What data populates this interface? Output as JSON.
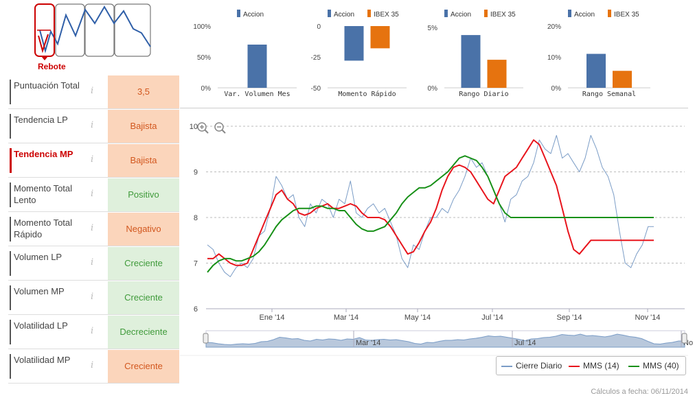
{
  "pattern": {
    "label": "Rebote"
  },
  "indicators": [
    {
      "label": "Puntuación Total",
      "value": "3,5",
      "kind": "neg",
      "active": false
    },
    {
      "label": "Tendencia LP",
      "value": "Bajista",
      "kind": "neg",
      "active": false
    },
    {
      "label": "Tendencia MP",
      "value": "Bajista",
      "kind": "neg",
      "active": true
    },
    {
      "label": "Momento Total Lento",
      "value": "Positivo",
      "kind": "pos",
      "active": false
    },
    {
      "label": "Momento Total Rápido",
      "value": "Negativo",
      "kind": "neg",
      "active": false
    },
    {
      "label": "Volumen LP",
      "value": "Creciente",
      "kind": "pos",
      "active": false
    },
    {
      "label": "Volumen MP",
      "value": "Creciente",
      "kind": "pos",
      "active": false
    },
    {
      "label": "Volatilidad LP",
      "value": "Decreciente",
      "kind": "pos",
      "active": false
    },
    {
      "label": "Volatilidad MP",
      "value": "Creciente",
      "kind": "neg",
      "active": false
    }
  ],
  "info_glyph": "i",
  "colors": {
    "accion": "#4a72a8",
    "ibex": "#e6730f",
    "price": "#7a9cc6",
    "mms14": "#e8141c",
    "mms40": "#179017",
    "neg_bg": "#fbd5bb",
    "pos_bg": "#dff0dc"
  },
  "chart_data": [
    {
      "type": "bar",
      "title": "Var. Volumen Mes",
      "series": [
        {
          "name": "Accion",
          "values": [
            70
          ]
        }
      ],
      "yticks": [
        "100%",
        "50%",
        "0%"
      ],
      "ylim": [
        0,
        100
      ]
    },
    {
      "type": "bar",
      "title": "Momento Rápido",
      "series": [
        {
          "name": "Accion",
          "values": [
            -28
          ]
        },
        {
          "name": "IBEX 35",
          "values": [
            -18
          ]
        }
      ],
      "yticks": [
        "0",
        "-25",
        "-50"
      ],
      "ylim": [
        -50,
        0
      ]
    },
    {
      "type": "bar",
      "title": "Rango Diario",
      "series": [
        {
          "name": "Accion",
          "values": [
            4.7
          ]
        },
        {
          "name": "IBEX 35",
          "values": [
            2.5
          ]
        }
      ],
      "yticks": [
        "5%",
        "0%"
      ],
      "ylim": [
        0,
        5.5
      ]
    },
    {
      "type": "bar",
      "title": "Rango Semanal",
      "series": [
        {
          "name": "Accion",
          "values": [
            11
          ]
        },
        {
          "name": "IBEX 35",
          "values": [
            5.5
          ]
        }
      ],
      "yticks": [
        "20%",
        "10%",
        "0%"
      ],
      "ylim": [
        0,
        20
      ]
    },
    {
      "type": "line",
      "title": "",
      "ylim": [
        6,
        10
      ],
      "yticks": [
        "10",
        "9",
        "8",
        "7",
        "6"
      ],
      "xlabels": [
        "Ene '14",
        "Mar '14",
        "May '14",
        "Jul '14",
        "Sep '14",
        "Nov '14"
      ],
      "navigator_labels": [
        "Mar '14",
        "Jul '14",
        "No"
      ],
      "series": [
        {
          "name": "Cierre Diario",
          "values": [
            7.4,
            7.3,
            7.0,
            6.8,
            6.7,
            6.9,
            7.0,
            6.9,
            7.1,
            7.6,
            7.7,
            8.2,
            8.9,
            8.7,
            8.4,
            8.5,
            8.0,
            7.8,
            8.3,
            8.1,
            8.4,
            8.3,
            8.0,
            8.4,
            8.3,
            8.8,
            8.1,
            8.0,
            8.2,
            8.3,
            8.1,
            8.2,
            7.9,
            7.6,
            7.1,
            6.9,
            7.4,
            7.3,
            7.7,
            8.0,
            8.0,
            8.2,
            8.1,
            8.4,
            8.6,
            8.9,
            9.3,
            9.1,
            9.2,
            8.9,
            8.6,
            8.3,
            7.9,
            8.4,
            8.5,
            8.8,
            8.9,
            9.2,
            9.7,
            9.5,
            9.4,
            9.8,
            9.3,
            9.4,
            9.2,
            9.0,
            9.3,
            9.8,
            9.5,
            9.1,
            8.9,
            8.5,
            7.7,
            7.0,
            6.9,
            7.2,
            7.4,
            7.8,
            7.8
          ]
        },
        {
          "name": "MMS (14)",
          "values": [
            7.1,
            7.1,
            7.2,
            7.1,
            7.0,
            6.95,
            6.95,
            7.0,
            7.3,
            7.6,
            7.9,
            8.2,
            8.5,
            8.6,
            8.4,
            8.3,
            8.1,
            8.05,
            8.1,
            8.2,
            8.25,
            8.3,
            8.2,
            8.2,
            8.25,
            8.3,
            8.25,
            8.1,
            8.0,
            8.0,
            8.0,
            7.95,
            7.8,
            7.6,
            7.4,
            7.2,
            7.25,
            7.45,
            7.7,
            7.9,
            8.2,
            8.6,
            8.9,
            9.1,
            9.15,
            9.1,
            9.0,
            8.8,
            8.6,
            8.4,
            8.3,
            8.6,
            8.9,
            9.0,
            9.1,
            9.3,
            9.5,
            9.7,
            9.6,
            9.3,
            9.0,
            8.7,
            8.2,
            7.7,
            7.3,
            7.2,
            7.35,
            7.5,
            7.5,
            7.5,
            7.5,
            7.5,
            7.5,
            7.5,
            7.5,
            7.5,
            7.5,
            7.5,
            7.5
          ]
        },
        {
          "name": "MMS (40)",
          "values": [
            6.8,
            6.95,
            7.05,
            7.1,
            7.1,
            7.05,
            7.05,
            7.1,
            7.15,
            7.25,
            7.4,
            7.6,
            7.8,
            7.95,
            8.05,
            8.15,
            8.2,
            8.2,
            8.2,
            8.25,
            8.25,
            8.2,
            8.2,
            8.15,
            8.15,
            8.0,
            7.85,
            7.75,
            7.7,
            7.7,
            7.75,
            7.8,
            7.95,
            8.1,
            8.3,
            8.45,
            8.55,
            8.65,
            8.65,
            8.7,
            8.8,
            8.9,
            9.0,
            9.15,
            9.3,
            9.35,
            9.3,
            9.25,
            9.1,
            8.9,
            8.6,
            8.3,
            8.1,
            8.0,
            8.0,
            8.0,
            8.0,
            8.0,
            8.0,
            8.0,
            8.0,
            8.0,
            8.0,
            8.0,
            8.0,
            8.0,
            8.0,
            8.0,
            8.0,
            8.0,
            8.0,
            8.0,
            8.0,
            8.0,
            8.0,
            8.0,
            8.0,
            8.0,
            8.0
          ]
        }
      ]
    }
  ],
  "zoom": {
    "in": "zoom-in",
    "out": "zoom-out"
  },
  "footer": "Cálculos a fecha: 06/11/2014"
}
